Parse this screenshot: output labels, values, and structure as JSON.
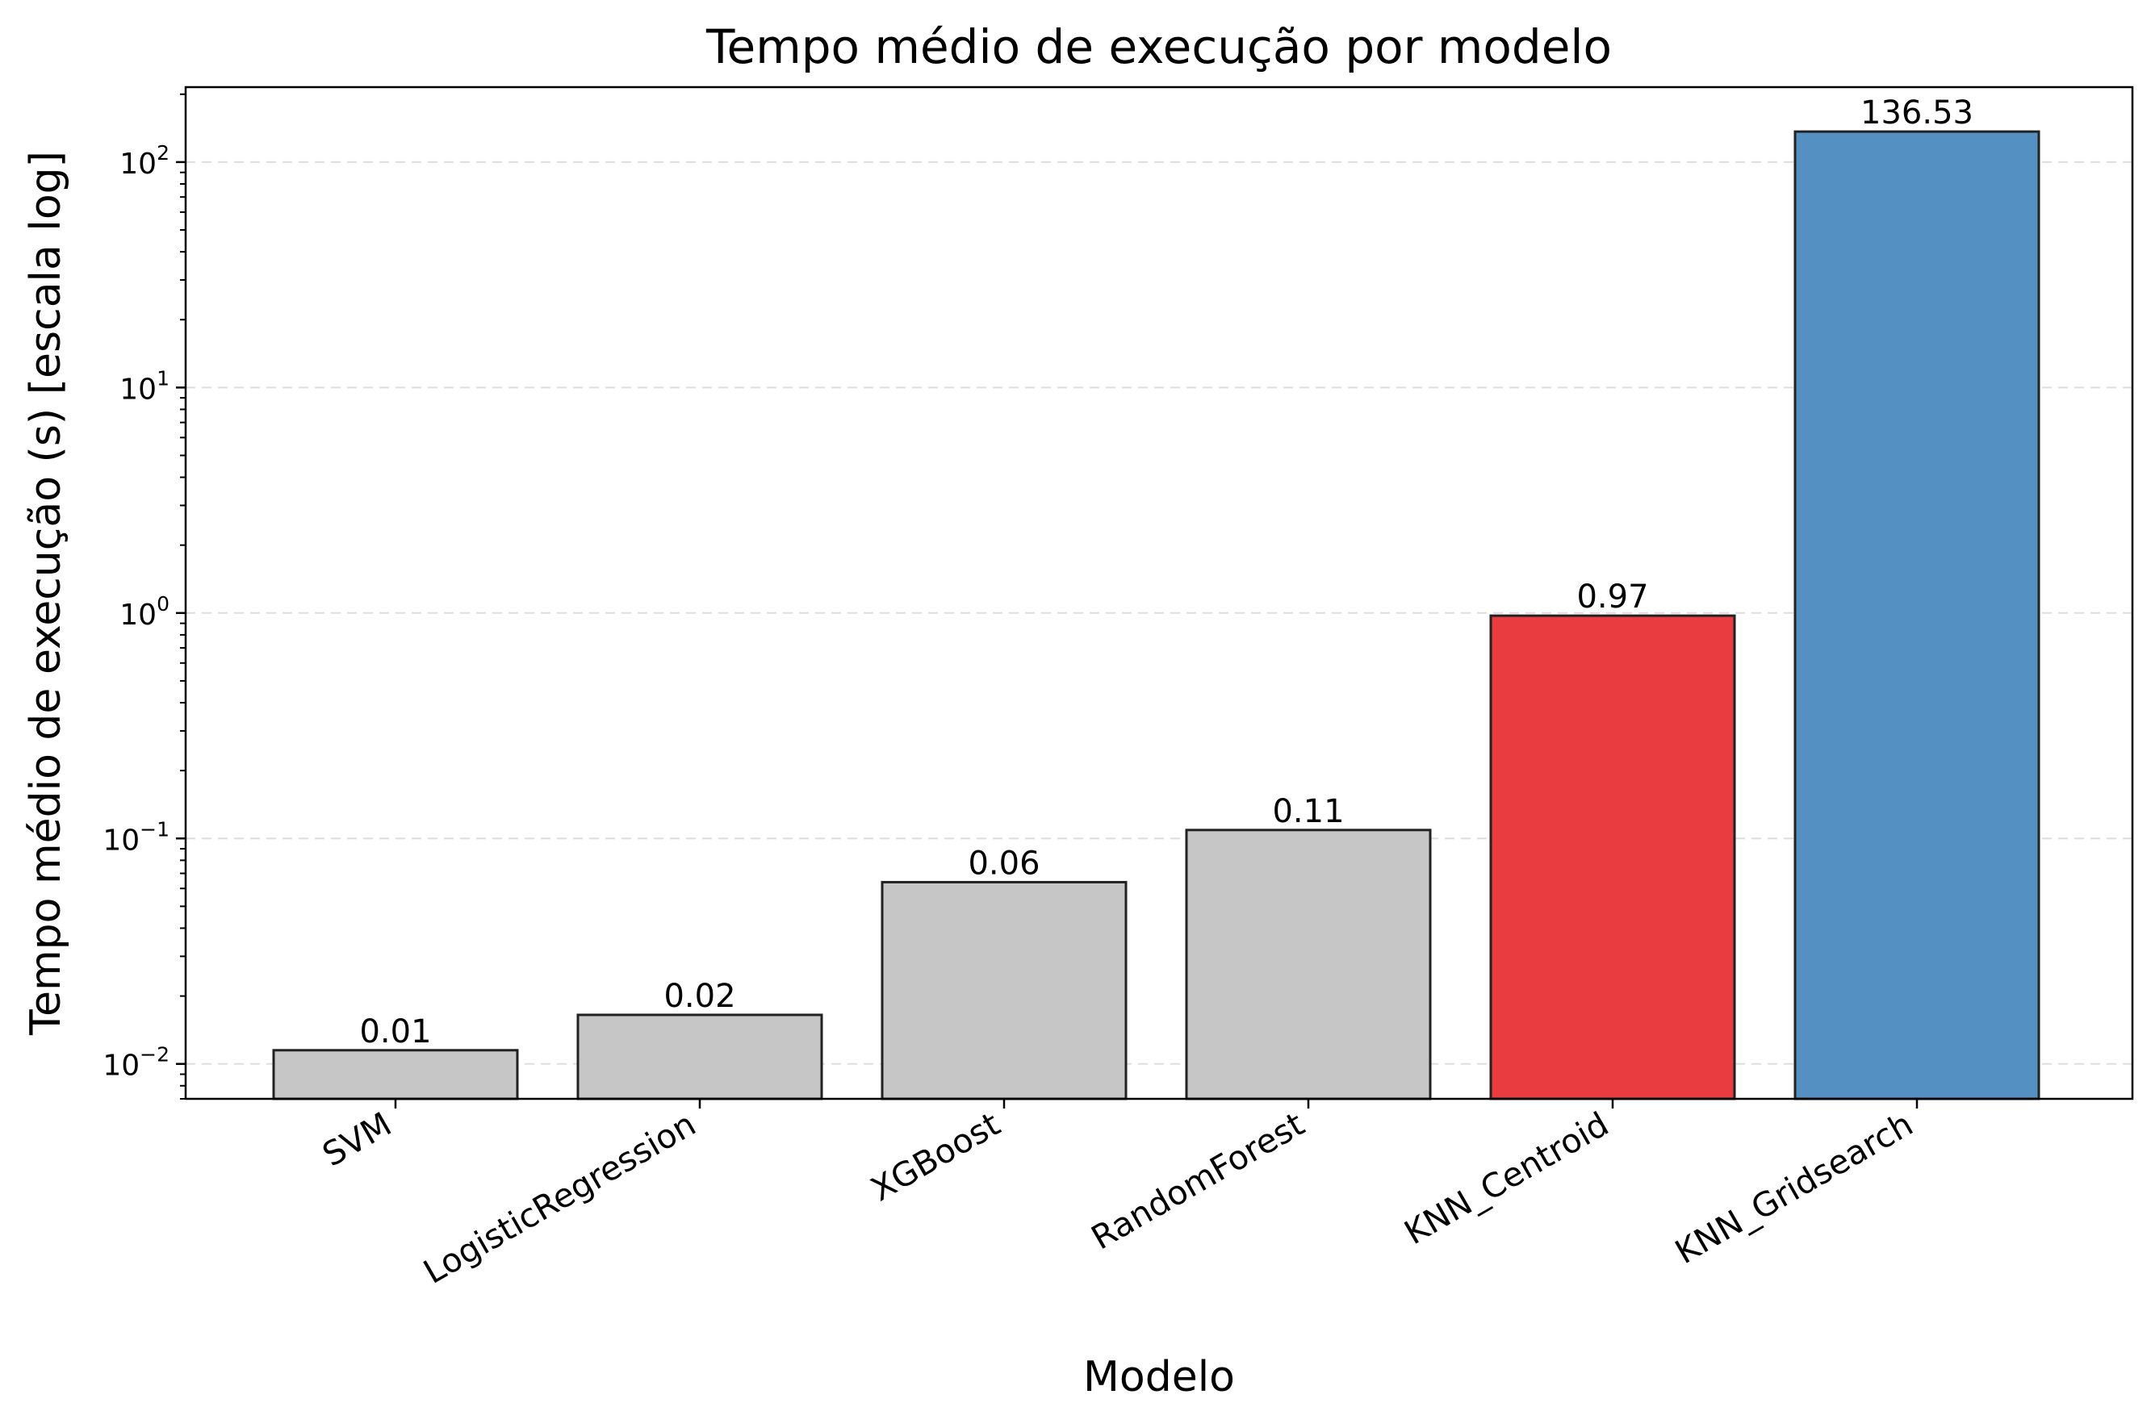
{
  "chart_data": {
    "type": "bar",
    "title": "Tempo médio de execução por modelo",
    "xlabel": "Modelo",
    "ylabel": "Tempo médio de execução (s) [escala log]",
    "yscale": "log",
    "ylim": [
      0.007,
      215
    ],
    "y_ticks": [
      0.01,
      0.1,
      1,
      10,
      100
    ],
    "y_tick_labels": [
      {
        "base": "10",
        "exp": "−2"
      },
      {
        "base": "10",
        "exp": "−1"
      },
      {
        "base": "10",
        "exp": "0"
      },
      {
        "base": "10",
        "exp": "1"
      },
      {
        "base": "10",
        "exp": "2"
      }
    ],
    "grid": {
      "axis": "y",
      "style": "dashed",
      "color": "#dddddd"
    },
    "categories": [
      "SVM",
      "LogisticRegression",
      "XGBoost",
      "RandomForest",
      "KNN_Centroid",
      "KNN_Gridsearch"
    ],
    "values": [
      0.0115,
      0.0165,
      0.064,
      0.109,
      0.973,
      136.53
    ],
    "value_labels": [
      "0.01",
      "0.02",
      "0.06",
      "0.11",
      "0.97",
      "136.53"
    ],
    "colors": [
      "#c6c6c6",
      "#c6c6c6",
      "#c6c6c6",
      "#c6c6c6",
      "#e83c40",
      "#5590c2"
    ],
    "edge_color": "#222222"
  }
}
